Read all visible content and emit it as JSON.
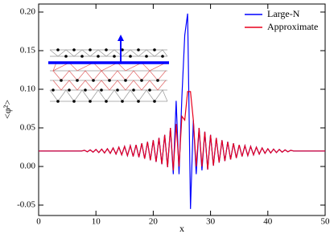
{
  "chart_data": {
    "type": "line",
    "xlabel": "x",
    "ylabel": "<φ²>",
    "x": [
      0,
      0.5,
      1,
      1.5,
      2,
      2.5,
      3,
      3.5,
      4,
      4.5,
      5,
      5.5,
      6,
      6.5,
      7,
      7.5,
      8,
      8.5,
      9,
      9.5,
      10,
      10.5,
      11,
      11.5,
      12,
      12.5,
      13,
      13.5,
      14,
      14.5,
      15,
      15.5,
      16,
      16.5,
      17,
      17.5,
      18,
      18.5,
      19,
      19.5,
      20,
      20.5,
      21,
      21.5,
      22,
      22.5,
      23,
      23.5,
      24,
      24.5,
      25,
      25.5,
      26,
      26.5,
      27,
      27.5,
      28,
      28.5,
      29,
      29.5,
      30,
      30.5,
      31,
      31.5,
      32,
      32.5,
      33,
      33.5,
      34,
      34.5,
      35,
      35.5,
      36,
      36.5,
      37,
      37.5,
      38,
      38.5,
      39,
      39.5,
      40,
      40.5,
      41,
      41.5,
      42,
      42.5,
      43,
      43.5,
      44,
      44.5,
      45,
      45.5,
      46,
      46.5,
      47,
      47.5,
      48,
      48.5,
      49,
      49.5,
      50
    ],
    "series": [
      {
        "name": "Large-N",
        "color": "#0000ff",
        "values": [
          0.02,
          0.02,
          0.02,
          0.02,
          0.02,
          0.02,
          0.02,
          0.02,
          0.02,
          0.02,
          0.02,
          0.02,
          0.02,
          0.02,
          0.02,
          0.02,
          0.021,
          0.019,
          0.0215,
          0.0185,
          0.022,
          0.018,
          0.0225,
          0.0175,
          0.023,
          0.017,
          0.024,
          0.016,
          0.025,
          0.015,
          0.026,
          0.014,
          0.027,
          0.013,
          0.028,
          0.012,
          0.03,
          0.01,
          0.032,
          0.008,
          0.034,
          0.006,
          0.037,
          0.003,
          0.041,
          -0.001,
          0.05,
          -0.01,
          0.085,
          -0.01,
          0.09,
          0.17,
          0.198,
          -0.055,
          0.06,
          -0.01,
          0.05,
          -0.005,
          0.045,
          -0.004,
          0.041,
          0.001,
          0.037,
          0.005,
          0.034,
          0.007,
          0.032,
          0.009,
          0.03,
          0.011,
          0.028,
          0.013,
          0.027,
          0.014,
          0.026,
          0.015,
          0.025,
          0.016,
          0.024,
          0.017,
          0.023,
          0.0175,
          0.0225,
          0.018,
          0.022,
          0.0185,
          0.0215,
          0.019,
          0.021,
          0.02,
          0.02,
          0.02,
          0.02,
          0.02,
          0.02,
          0.02,
          0.02,
          0.02,
          0.02,
          0.02,
          0.02
        ]
      },
      {
        "name": "Approximate",
        "color": "#e8001c",
        "values": [
          0.02,
          0.02,
          0.02,
          0.02,
          0.02,
          0.02,
          0.02,
          0.02,
          0.02,
          0.02,
          0.02,
          0.02,
          0.02,
          0.02,
          0.02,
          0.02,
          0.021,
          0.019,
          0.0215,
          0.0185,
          0.022,
          0.018,
          0.0225,
          0.0175,
          0.023,
          0.017,
          0.024,
          0.016,
          0.025,
          0.015,
          0.026,
          0.014,
          0.027,
          0.013,
          0.028,
          0.012,
          0.03,
          0.01,
          0.032,
          0.008,
          0.034,
          0.006,
          0.037,
          0.003,
          0.041,
          -0.001,
          0.05,
          -0.005,
          0.055,
          0.0,
          0.065,
          0.06,
          0.097,
          0.097,
          0.06,
          0.0,
          0.05,
          0.0,
          0.045,
          -0.004,
          0.041,
          0.001,
          0.037,
          0.005,
          0.034,
          0.007,
          0.032,
          0.009,
          0.03,
          0.011,
          0.028,
          0.013,
          0.027,
          0.014,
          0.026,
          0.015,
          0.025,
          0.016,
          0.024,
          0.017,
          0.023,
          0.0175,
          0.0225,
          0.018,
          0.022,
          0.0185,
          0.0215,
          0.019,
          0.021,
          0.02,
          0.02,
          0.02,
          0.02,
          0.02,
          0.02,
          0.02,
          0.02,
          0.02,
          0.02,
          0.02,
          0.02
        ]
      }
    ],
    "xlim": [
      0,
      50
    ],
    "xticks": [
      0,
      10,
      20,
      30,
      40,
      50
    ],
    "ylim": [
      -0.0635,
      0.2104
    ],
    "yticks": [
      -0.05,
      {
        "value": 0,
        "label": "0.00"
      },
      0.05,
      {
        "value": 0.1,
        "label": "0.10"
      },
      0.15,
      {
        "value": 0.2,
        "label": "0.20"
      }
    ],
    "grid": false,
    "legend": "upper right"
  }
}
